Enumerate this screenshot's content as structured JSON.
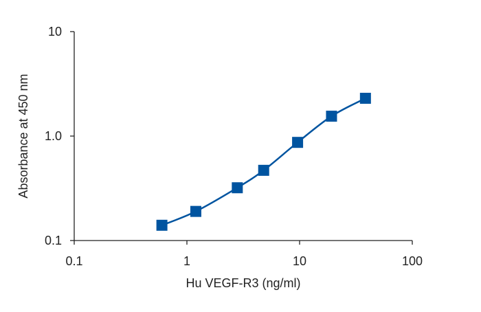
{
  "chart_data": {
    "type": "line",
    "title": "",
    "xlabel": "Hu VEGF-R3 (ng/ml)",
    "ylabel": "Absorbance at 450 nm",
    "xscale": "log",
    "yscale": "log",
    "xlim": [
      0.1,
      100
    ],
    "ylim": [
      0.1,
      10
    ],
    "xticks": [
      {
        "v": 0.1,
        "label": "0.1"
      },
      {
        "v": 1,
        "label": "1"
      },
      {
        "v": 10,
        "label": "10"
      },
      {
        "v": 100,
        "label": "100"
      }
    ],
    "yticks": [
      {
        "v": 0.1,
        "label": "0.1"
      },
      {
        "v": 1,
        "label": "1.0"
      },
      {
        "v": 10,
        "label": "10"
      }
    ],
    "grid": false,
    "series": [
      {
        "name": "Hu VEGF-R3",
        "color": "#0054a0",
        "marker": "square",
        "x": [
          0.6,
          1.2,
          2.8,
          4.8,
          9.6,
          19.2,
          38.4
        ],
        "y": [
          0.14,
          0.19,
          0.32,
          0.47,
          0.87,
          1.55,
          2.3
        ]
      }
    ]
  }
}
